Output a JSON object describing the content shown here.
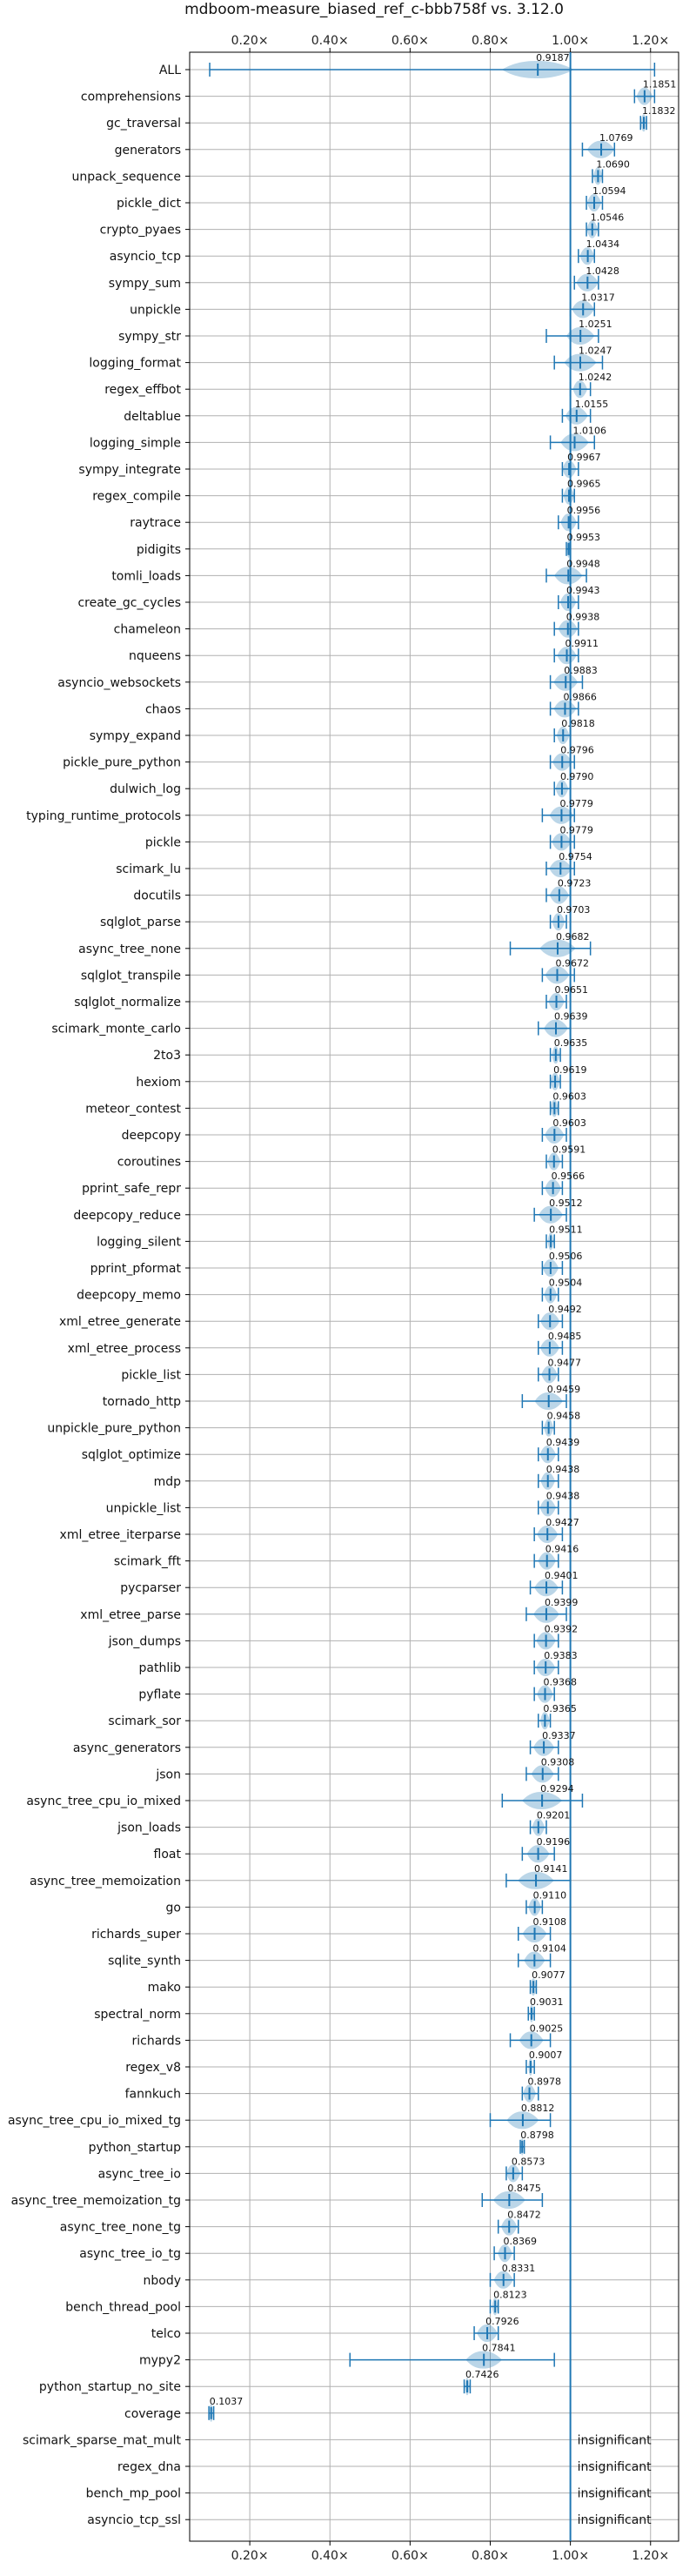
{
  "chart_data": {
    "type": "violin",
    "title": "mdboom-measure_biased_ref_c-bbb758f vs. 3.12.0",
    "xlabel": "",
    "ylabel": "",
    "xlim": [
      0.05,
      1.27
    ],
    "xticks": [
      0.2,
      0.4,
      0.6,
      0.8,
      1.0,
      1.2
    ],
    "xtick_labels": [
      "0.20×",
      "0.40×",
      "0.60×",
      "0.80×",
      "1.00×",
      "1.20×"
    ],
    "reference_line": 1.0,
    "grid": true,
    "colors": {
      "violin": "#1f77b4",
      "grid": "#b0b0b0",
      "text": "#111111"
    },
    "rows": [
      {
        "name": "ALL",
        "value": 0.9187,
        "label": "0.9187",
        "min": 0.1,
        "max": 1.21,
        "spread": 0.09
      },
      {
        "name": "comprehensions",
        "value": 1.1851,
        "label": "1.1851",
        "min": 1.16,
        "max": 1.21,
        "spread": 0.02
      },
      {
        "name": "gc_traversal",
        "value": 1.1832,
        "label": "1.1832",
        "min": 1.175,
        "max": 1.19,
        "spread": 0.008
      },
      {
        "name": "generators",
        "value": 1.0769,
        "label": "1.0769",
        "min": 1.03,
        "max": 1.11,
        "spread": 0.035
      },
      {
        "name": "unpack_sequence",
        "value": 1.069,
        "label": "1.0690",
        "min": 1.055,
        "max": 1.08,
        "spread": 0.012
      },
      {
        "name": "pickle_dict",
        "value": 1.0594,
        "label": "1.0594",
        "min": 1.04,
        "max": 1.08,
        "spread": 0.018
      },
      {
        "name": "crypto_pyaes",
        "value": 1.0546,
        "label": "1.0546",
        "min": 1.04,
        "max": 1.07,
        "spread": 0.014
      },
      {
        "name": "asyncio_tcp",
        "value": 1.0434,
        "label": "1.0434",
        "min": 1.02,
        "max": 1.06,
        "spread": 0.02
      },
      {
        "name": "sympy_sum",
        "value": 1.0428,
        "label": "1.0428",
        "min": 1.01,
        "max": 1.07,
        "spread": 0.028
      },
      {
        "name": "unpickle",
        "value": 1.0317,
        "label": "1.0317",
        "min": 1.0,
        "max": 1.06,
        "spread": 0.028
      },
      {
        "name": "sympy_str",
        "value": 1.0251,
        "label": "1.0251",
        "min": 0.94,
        "max": 1.07,
        "spread": 0.035
      },
      {
        "name": "logging_format",
        "value": 1.0247,
        "label": "1.0247",
        "min": 0.96,
        "max": 1.08,
        "spread": 0.04
      },
      {
        "name": "regex_effbot",
        "value": 1.0242,
        "label": "1.0242",
        "min": 1.0,
        "max": 1.05,
        "spread": 0.018
      },
      {
        "name": "deltablue",
        "value": 1.0155,
        "label": "1.0155",
        "min": 0.98,
        "max": 1.05,
        "spread": 0.028
      },
      {
        "name": "logging_simple",
        "value": 1.0106,
        "label": "1.0106",
        "min": 0.95,
        "max": 1.06,
        "spread": 0.035
      },
      {
        "name": "sympy_integrate",
        "value": 0.9967,
        "label": "0.9967",
        "min": 0.98,
        "max": 1.02,
        "spread": 0.018
      },
      {
        "name": "regex_compile",
        "value": 0.9965,
        "label": "0.9965",
        "min": 0.98,
        "max": 1.01,
        "spread": 0.014
      },
      {
        "name": "raytrace",
        "value": 0.9956,
        "label": "0.9956",
        "min": 0.97,
        "max": 1.02,
        "spread": 0.02
      },
      {
        "name": "pidigits",
        "value": 0.9953,
        "label": "0.9953",
        "min": 0.99,
        "max": 1.0,
        "spread": 0.004
      },
      {
        "name": "tomli_loads",
        "value": 0.9948,
        "label": "0.9948",
        "min": 0.94,
        "max": 1.04,
        "spread": 0.035
      },
      {
        "name": "create_gc_cycles",
        "value": 0.9943,
        "label": "0.9943",
        "min": 0.97,
        "max": 1.02,
        "spread": 0.02
      },
      {
        "name": "chameleon",
        "value": 0.9938,
        "label": "0.9938",
        "min": 0.96,
        "max": 1.02,
        "spread": 0.024
      },
      {
        "name": "nqueens",
        "value": 0.9911,
        "label": "0.9911",
        "min": 0.96,
        "max": 1.02,
        "spread": 0.024
      },
      {
        "name": "asyncio_websockets",
        "value": 0.9883,
        "label": "0.9883",
        "min": 0.95,
        "max": 1.03,
        "spread": 0.03
      },
      {
        "name": "chaos",
        "value": 0.9866,
        "label": "0.9866",
        "min": 0.95,
        "max": 1.02,
        "spread": 0.028
      },
      {
        "name": "sympy_expand",
        "value": 0.9818,
        "label": "0.9818",
        "min": 0.96,
        "max": 1.0,
        "spread": 0.016
      },
      {
        "name": "pickle_pure_python",
        "value": 0.9796,
        "label": "0.9796",
        "min": 0.95,
        "max": 1.01,
        "spread": 0.024
      },
      {
        "name": "dulwich_log",
        "value": 0.979,
        "label": "0.9790",
        "min": 0.96,
        "max": 1.0,
        "spread": 0.016
      },
      {
        "name": "typing_runtime_protocols",
        "value": 0.9779,
        "label": "0.9779",
        "min": 0.93,
        "max": 1.01,
        "spread": 0.03
      },
      {
        "name": "pickle",
        "value": 0.9779,
        "label": "0.9779",
        "min": 0.95,
        "max": 1.01,
        "spread": 0.024
      },
      {
        "name": "scimark_lu",
        "value": 0.9754,
        "label": "0.9754",
        "min": 0.94,
        "max": 1.01,
        "spread": 0.028
      },
      {
        "name": "docutils",
        "value": 0.9723,
        "label": "0.9723",
        "min": 0.94,
        "max": 1.0,
        "spread": 0.024
      },
      {
        "name": "sqlglot_parse",
        "value": 0.9703,
        "label": "0.9703",
        "min": 0.95,
        "max": 0.99,
        "spread": 0.016
      },
      {
        "name": "async_tree_none",
        "value": 0.9682,
        "label": "0.9682",
        "min": 0.85,
        "max": 1.05,
        "spread": 0.045
      },
      {
        "name": "sqlglot_transpile",
        "value": 0.9672,
        "label": "0.9672",
        "min": 0.93,
        "max": 1.01,
        "spread": 0.03
      },
      {
        "name": "sqlglot_normalize",
        "value": 0.9651,
        "label": "0.9651",
        "min": 0.94,
        "max": 0.99,
        "spread": 0.02
      },
      {
        "name": "scimark_monte_carlo",
        "value": 0.9639,
        "label": "0.9639",
        "min": 0.92,
        "max": 1.0,
        "spread": 0.03
      },
      {
        "name": "2to3",
        "value": 0.9635,
        "label": "0.9635",
        "min": 0.95,
        "max": 0.975,
        "spread": 0.01
      },
      {
        "name": "hexiom",
        "value": 0.9619,
        "label": "0.9619",
        "min": 0.95,
        "max": 0.975,
        "spread": 0.012
      },
      {
        "name": "meteor_contest",
        "value": 0.9603,
        "label": "0.9603",
        "min": 0.95,
        "max": 0.97,
        "spread": 0.01
      },
      {
        "name": "deepcopy",
        "value": 0.9603,
        "label": "0.9603",
        "min": 0.93,
        "max": 0.99,
        "spread": 0.024
      },
      {
        "name": "coroutines",
        "value": 0.9591,
        "label": "0.9591",
        "min": 0.94,
        "max": 0.98,
        "spread": 0.016
      },
      {
        "name": "pprint_safe_repr",
        "value": 0.9566,
        "label": "0.9566",
        "min": 0.93,
        "max": 0.98,
        "spread": 0.02
      },
      {
        "name": "deepcopy_reduce",
        "value": 0.9512,
        "label": "0.9512",
        "min": 0.91,
        "max": 0.99,
        "spread": 0.03
      },
      {
        "name": "logging_silent",
        "value": 0.9511,
        "label": "0.9511",
        "min": 0.94,
        "max": 0.96,
        "spread": 0.008
      },
      {
        "name": "pprint_pformat",
        "value": 0.9506,
        "label": "0.9506",
        "min": 0.93,
        "max": 0.98,
        "spread": 0.02
      },
      {
        "name": "deepcopy_memo",
        "value": 0.9504,
        "label": "0.9504",
        "min": 0.93,
        "max": 0.97,
        "spread": 0.016
      },
      {
        "name": "xml_etree_generate",
        "value": 0.9492,
        "label": "0.9492",
        "min": 0.92,
        "max": 0.98,
        "spread": 0.024
      },
      {
        "name": "xml_etree_process",
        "value": 0.9485,
        "label": "0.9485",
        "min": 0.92,
        "max": 0.98,
        "spread": 0.024
      },
      {
        "name": "pickle_list",
        "value": 0.9477,
        "label": "0.9477",
        "min": 0.92,
        "max": 0.97,
        "spread": 0.02
      },
      {
        "name": "tornado_http",
        "value": 0.9459,
        "label": "0.9459",
        "min": 0.88,
        "max": 0.99,
        "spread": 0.035
      },
      {
        "name": "unpickle_pure_python",
        "value": 0.9458,
        "label": "0.9458",
        "min": 0.93,
        "max": 0.96,
        "spread": 0.012
      },
      {
        "name": "sqlglot_optimize",
        "value": 0.9439,
        "label": "0.9439",
        "min": 0.92,
        "max": 0.97,
        "spread": 0.02
      },
      {
        "name": "mdp",
        "value": 0.9438,
        "label": "0.9438",
        "min": 0.92,
        "max": 0.97,
        "spread": 0.018
      },
      {
        "name": "unpickle_list",
        "value": 0.9438,
        "label": "0.9438",
        "min": 0.92,
        "max": 0.97,
        "spread": 0.02
      },
      {
        "name": "xml_etree_iterparse",
        "value": 0.9427,
        "label": "0.9427",
        "min": 0.91,
        "max": 0.98,
        "spread": 0.026
      },
      {
        "name": "scimark_fft",
        "value": 0.9416,
        "label": "0.9416",
        "min": 0.91,
        "max": 0.97,
        "spread": 0.022
      },
      {
        "name": "pycparser",
        "value": 0.9401,
        "label": "0.9401",
        "min": 0.9,
        "max": 0.98,
        "spread": 0.03
      },
      {
        "name": "xml_etree_parse",
        "value": 0.9399,
        "label": "0.9399",
        "min": 0.89,
        "max": 0.99,
        "spread": 0.032
      },
      {
        "name": "json_dumps",
        "value": 0.9392,
        "label": "0.9392",
        "min": 0.91,
        "max": 0.97,
        "spread": 0.024
      },
      {
        "name": "pathlib",
        "value": 0.9383,
        "label": "0.9383",
        "min": 0.91,
        "max": 0.97,
        "spread": 0.024
      },
      {
        "name": "pyflate",
        "value": 0.9368,
        "label": "0.9368",
        "min": 0.91,
        "max": 0.96,
        "spread": 0.02
      },
      {
        "name": "scimark_sor",
        "value": 0.9365,
        "label": "0.9365",
        "min": 0.92,
        "max": 0.95,
        "spread": 0.012
      },
      {
        "name": "async_generators",
        "value": 0.9337,
        "label": "0.9337",
        "min": 0.9,
        "max": 0.97,
        "spread": 0.026
      },
      {
        "name": "json",
        "value": 0.9308,
        "label": "0.9308",
        "min": 0.89,
        "max": 0.97,
        "spread": 0.028
      },
      {
        "name": "async_tree_cpu_io_mixed",
        "value": 0.9294,
        "label": "0.9294",
        "min": 0.83,
        "max": 1.03,
        "spread": 0.05
      },
      {
        "name": "json_loads",
        "value": 0.9201,
        "label": "0.9201",
        "min": 0.9,
        "max": 0.94,
        "spread": 0.016
      },
      {
        "name": "float",
        "value": 0.9196,
        "label": "0.9196",
        "min": 0.88,
        "max": 0.96,
        "spread": 0.028
      },
      {
        "name": "async_tree_memoization",
        "value": 0.9141,
        "label": "0.9141",
        "min": 0.84,
        "max": 1.0,
        "spread": 0.045
      },
      {
        "name": "go",
        "value": 0.911,
        "label": "0.9110",
        "min": 0.89,
        "max": 0.93,
        "spread": 0.016
      },
      {
        "name": "richards_super",
        "value": 0.9108,
        "label": "0.9108",
        "min": 0.87,
        "max": 0.95,
        "spread": 0.03
      },
      {
        "name": "sqlite_synth",
        "value": 0.9104,
        "label": "0.9104",
        "min": 0.87,
        "max": 0.95,
        "spread": 0.026
      },
      {
        "name": "mako",
        "value": 0.9077,
        "label": "0.9077",
        "min": 0.9,
        "max": 0.915,
        "spread": 0.008
      },
      {
        "name": "spectral_norm",
        "value": 0.9031,
        "label": "0.9031",
        "min": 0.895,
        "max": 0.91,
        "spread": 0.006
      },
      {
        "name": "richards",
        "value": 0.9025,
        "label": "0.9025",
        "min": 0.85,
        "max": 0.95,
        "spread": 0.03
      },
      {
        "name": "regex_v8",
        "value": 0.9007,
        "label": "0.9007",
        "min": 0.89,
        "max": 0.91,
        "spread": 0.006
      },
      {
        "name": "fannkuch",
        "value": 0.8978,
        "label": "0.8978",
        "min": 0.88,
        "max": 0.92,
        "spread": 0.016
      },
      {
        "name": "async_tree_cpu_io_mixed_tg",
        "value": 0.8812,
        "label": "0.8812",
        "min": 0.8,
        "max": 0.95,
        "spread": 0.04
      },
      {
        "name": "python_startup",
        "value": 0.8798,
        "label": "0.8798",
        "min": 0.875,
        "max": 0.885,
        "spread": 0.004
      },
      {
        "name": "async_tree_io",
        "value": 0.8573,
        "label": "0.8573",
        "min": 0.84,
        "max": 0.88,
        "spread": 0.018
      },
      {
        "name": "async_tree_memoization_tg",
        "value": 0.8475,
        "label": "0.8475",
        "min": 0.78,
        "max": 0.93,
        "spread": 0.04
      },
      {
        "name": "async_tree_none_tg",
        "value": 0.8472,
        "label": "0.8472",
        "min": 0.82,
        "max": 0.87,
        "spread": 0.02
      },
      {
        "name": "async_tree_io_tg",
        "value": 0.8369,
        "label": "0.8369",
        "min": 0.81,
        "max": 0.86,
        "spread": 0.018
      },
      {
        "name": "nbody",
        "value": 0.8331,
        "label": "0.8331",
        "min": 0.8,
        "max": 0.86,
        "spread": 0.024
      },
      {
        "name": "bench_thread_pool",
        "value": 0.8123,
        "label": "0.8123",
        "min": 0.8,
        "max": 0.82,
        "spread": 0.008
      },
      {
        "name": "telco",
        "value": 0.7926,
        "label": "0.7926",
        "min": 0.76,
        "max": 0.82,
        "spread": 0.026
      },
      {
        "name": "mypy2",
        "value": 0.7841,
        "label": "0.7841",
        "min": 0.45,
        "max": 0.96,
        "spread": 0.045
      },
      {
        "name": "python_startup_no_site",
        "value": 0.7426,
        "label": "0.7426",
        "min": 0.735,
        "max": 0.75,
        "spread": 0.006
      },
      {
        "name": "coverage",
        "value": 0.1037,
        "label": "0.1037",
        "min": 0.098,
        "max": 0.11,
        "spread": 0.006
      },
      {
        "name": "scimark_sparse_mat_mult",
        "value": null,
        "label": "",
        "note": "insignificant"
      },
      {
        "name": "regex_dna",
        "value": null,
        "label": "",
        "note": "insignificant"
      },
      {
        "name": "bench_mp_pool",
        "value": null,
        "label": "",
        "note": "insignificant"
      },
      {
        "name": "asyncio_tcp_ssl",
        "value": null,
        "label": "",
        "note": "insignificant"
      }
    ]
  }
}
